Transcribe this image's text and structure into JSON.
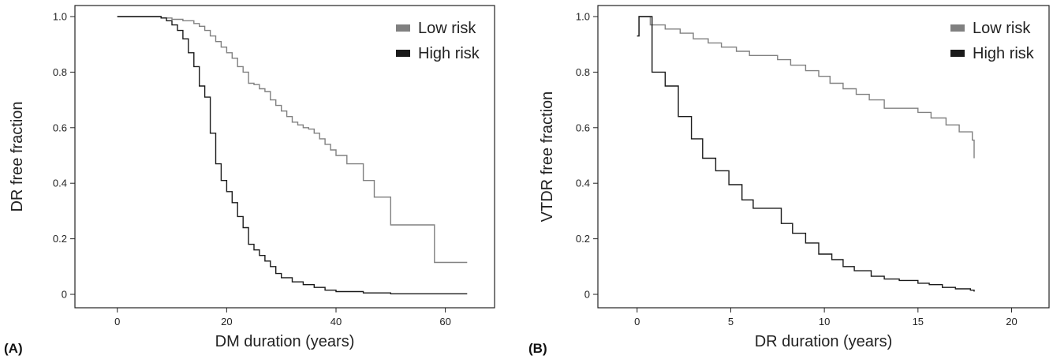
{
  "chart_data": [
    {
      "type": "line",
      "step": true,
      "panel_label": "(A)",
      "title": "",
      "xlabel": "DM duration  (years)",
      "ylabel": "DR free fraction",
      "xlim": [
        0,
        64
      ],
      "ylim": [
        0,
        1.0
      ],
      "xticks": [
        0,
        20,
        40,
        60
      ],
      "xtick_labels": [
        "0",
        "20",
        "40",
        "60"
      ],
      "yticks": [
        0,
        0.2,
        0.4,
        0.6,
        0.8,
        1.0
      ],
      "ytick_labels": [
        "0",
        "0.2",
        "0.4",
        "0.6",
        "0.8",
        "1.0"
      ],
      "grid": false,
      "legend": "top-right",
      "series": [
        {
          "name": "Low risk",
          "color": "#808080",
          "x": [
            0,
            8,
            10,
            12,
            14,
            15,
            16,
            17,
            18,
            19,
            20,
            21,
            22,
            23,
            24,
            25,
            26,
            27,
            28,
            29,
            30,
            31,
            32,
            33,
            34,
            35,
            36,
            37,
            38,
            39,
            40,
            42,
            45,
            47,
            50,
            58,
            64
          ],
          "y": [
            1.0,
            0.995,
            0.99,
            0.985,
            0.975,
            0.965,
            0.95,
            0.93,
            0.91,
            0.89,
            0.87,
            0.85,
            0.82,
            0.8,
            0.76,
            0.755,
            0.74,
            0.73,
            0.7,
            0.68,
            0.66,
            0.64,
            0.62,
            0.61,
            0.6,
            0.595,
            0.58,
            0.56,
            0.54,
            0.52,
            0.5,
            0.47,
            0.41,
            0.35,
            0.25,
            0.115,
            0.115
          ]
        },
        {
          "name": "High risk",
          "color": "#1a1a1a",
          "x": [
            0,
            8,
            9,
            10,
            11,
            12,
            13,
            14,
            15,
            16,
            17,
            18,
            19,
            20,
            21,
            22,
            23,
            24,
            25,
            26,
            27,
            28,
            29,
            30,
            32,
            34,
            36,
            38,
            40,
            45,
            50,
            64
          ],
          "y": [
            1.0,
            0.995,
            0.985,
            0.97,
            0.95,
            0.92,
            0.87,
            0.82,
            0.75,
            0.71,
            0.58,
            0.47,
            0.41,
            0.37,
            0.33,
            0.28,
            0.24,
            0.18,
            0.16,
            0.14,
            0.12,
            0.1,
            0.075,
            0.06,
            0.045,
            0.035,
            0.025,
            0.015,
            0.01,
            0.005,
            0.002,
            0.002
          ]
        }
      ]
    },
    {
      "type": "line",
      "step": true,
      "panel_label": "(B)",
      "title": "",
      "xlabel": "DR duration (years)",
      "ylabel": "VTDR free fraction",
      "xlim": [
        -1,
        22
      ],
      "ylim": [
        0,
        1.0
      ],
      "xticks": [
        0,
        5,
        10,
        15,
        20
      ],
      "xtick_labels": [
        "0",
        "5",
        "10",
        "15",
        "20"
      ],
      "yticks": [
        0,
        0.2,
        0.4,
        0.6,
        0.8,
        1.0
      ],
      "ytick_labels": [
        "0",
        "0.2",
        "0.4",
        "0.6",
        "0.8",
        "1.0"
      ],
      "grid": false,
      "legend": "top-right",
      "series": [
        {
          "name": "Low risk",
          "color": "#808080",
          "x": [
            0,
            0.1,
            0.7,
            1.5,
            2.3,
            3.0,
            3.8,
            4.5,
            5.3,
            6.0,
            7.5,
            8.2,
            9.0,
            9.7,
            10.3,
            11.0,
            11.7,
            12.4,
            13.2,
            15.0,
            15.7,
            16.5,
            17.2,
            17.9,
            18.0
          ],
          "y": [
            0.93,
            1.0,
            0.97,
            0.955,
            0.94,
            0.92,
            0.905,
            0.89,
            0.875,
            0.86,
            0.845,
            0.825,
            0.805,
            0.785,
            0.76,
            0.74,
            0.72,
            0.7,
            0.67,
            0.655,
            0.635,
            0.61,
            0.585,
            0.555,
            0.49
          ]
        },
        {
          "name": "High risk",
          "color": "#1a1a1a",
          "x": [
            0,
            0.1,
            0.8,
            1.5,
            2.2,
            2.9,
            3.5,
            4.2,
            4.9,
            5.6,
            6.2,
            7.7,
            8.3,
            9.0,
            9.7,
            10.4,
            11.0,
            11.6,
            12.5,
            13.2,
            14.0,
            15.0,
            15.6,
            16.3,
            17.0,
            17.8,
            18.0
          ],
          "y": [
            0.93,
            1.0,
            0.8,
            0.75,
            0.64,
            0.56,
            0.49,
            0.445,
            0.395,
            0.34,
            0.31,
            0.255,
            0.22,
            0.185,
            0.145,
            0.125,
            0.1,
            0.085,
            0.065,
            0.055,
            0.05,
            0.04,
            0.035,
            0.025,
            0.02,
            0.015,
            0.01
          ]
        }
      ]
    }
  ]
}
